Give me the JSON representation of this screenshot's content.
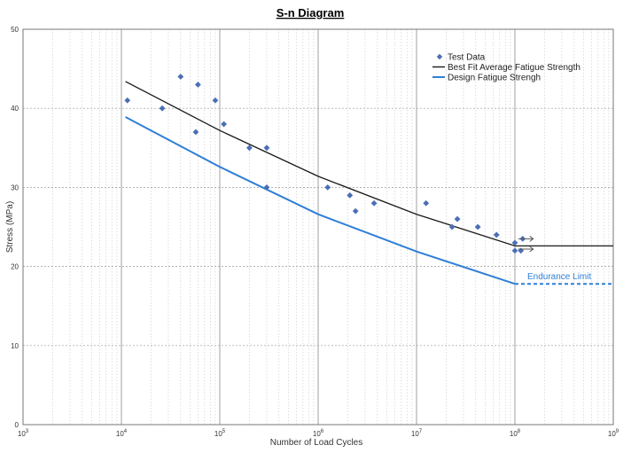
{
  "chart_data": {
    "type": "scatter",
    "title": "S-n Diagram",
    "xlabel": "Number of Load Cycles",
    "ylabel": "Stress (MPa)",
    "xscale": "log",
    "xlim": [
      1000,
      1000000000
    ],
    "ylim": [
      0,
      50
    ],
    "x_ticks": [
      {
        "value": 1000,
        "base": "10",
        "exp": "3"
      },
      {
        "value": 10000,
        "base": "10",
        "exp": "4"
      },
      {
        "value": 100000,
        "base": "10",
        "exp": "5"
      },
      {
        "value": 1000000,
        "base": "10",
        "exp": "6"
      },
      {
        "value": 10000000,
        "base": "10",
        "exp": "7"
      },
      {
        "value": 100000000,
        "base": "10",
        "exp": "8"
      },
      {
        "value": 1000000000,
        "base": "10",
        "exp": "9"
      }
    ],
    "y_ticks": [
      "0",
      "10",
      "20",
      "30",
      "40",
      "50"
    ],
    "grid": true,
    "legend_position": "top-right",
    "series": [
      {
        "name": "Test Data",
        "kind": "scatter",
        "color": "#4a6fb5",
        "x": [
          11500,
          26000,
          40000,
          57000,
          60000,
          90000,
          110000,
          200000,
          300000,
          300000,
          1250000,
          2100000,
          2400000,
          3700000,
          12500000,
          23000000,
          26000000,
          42000000,
          65000000,
          100000000,
          100000000,
          115000000,
          120000000
        ],
        "y": [
          41,
          40,
          44,
          37,
          43,
          41,
          38,
          35,
          35,
          30,
          30,
          29,
          27,
          28,
          28,
          25,
          26,
          25,
          24,
          22,
          23,
          22,
          23.5
        ]
      },
      {
        "name": "Best Fit Average Fatigue Strength",
        "kind": "line",
        "color": "#1a1a1a",
        "x": [
          11000,
          100000,
          1000000,
          10000000,
          100000000,
          1000000000
        ],
        "y": [
          43.4,
          37.2,
          31.4,
          26.6,
          22.6,
          22.6
        ]
      },
      {
        "name": "Design Fatigue Strengh",
        "kind": "line",
        "color": "#2f7fd6",
        "x": [
          11000,
          100000,
          1000000,
          10000000,
          100000000
        ],
        "y": [
          38.9,
          32.6,
          26.6,
          21.9,
          17.8
        ]
      }
    ],
    "endurance_limit": {
      "label": "Endurance Limit",
      "color": "#2f7fd6",
      "x": [
        100000000,
        1000000000
      ],
      "y": 17.8
    },
    "runout_points": {
      "color": "#555555",
      "x": [
        108000000,
        108000000
      ],
      "y": [
        23.5,
        22.2
      ]
    }
  }
}
